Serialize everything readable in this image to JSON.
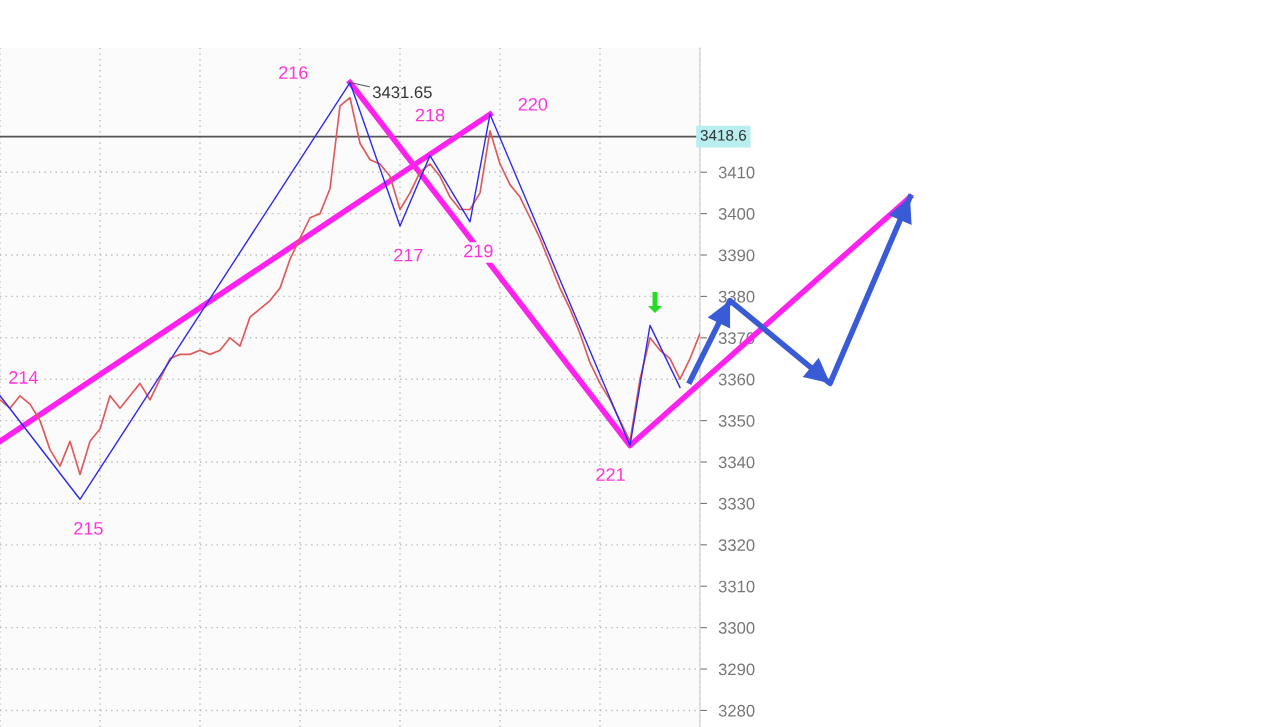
{
  "chart_data": {
    "type": "line",
    "categories": [
      null,
      null,
      null,
      null,
      null,
      null,
      null,
      null,
      null,
      null,
      null,
      null,
      null,
      null,
      null,
      null,
      null,
      null,
      null,
      null,
      null,
      null,
      null,
      null,
      null,
      null,
      null,
      null,
      null,
      null,
      null,
      null,
      null,
      null,
      null,
      null,
      null,
      null,
      null,
      null,
      null,
      null,
      null,
      null,
      null,
      null,
      null,
      null,
      null,
      null,
      null,
      null,
      null,
      null,
      null,
      null,
      null,
      null,
      null,
      null,
      null,
      null,
      null,
      null,
      null,
      null,
      null,
      null,
      null,
      null,
      null,
      null,
      null,
      null,
      null,
      null,
      null,
      null,
      null,
      null,
      null,
      null,
      null,
      null,
      null,
      null,
      null,
      null,
      null,
      null,
      null,
      null
    ],
    "series": [
      {
        "color": "#e05a5a",
        "values": [
          3355,
          3353,
          3356,
          3354,
          3350,
          3343,
          3339,
          3345,
          3337,
          3345,
          3348,
          3356,
          3353,
          3356,
          3359,
          3355,
          3360,
          3365,
          3366,
          3366,
          3367,
          3366,
          3367,
          3370,
          3368,
          3375,
          3377,
          3379,
          3382,
          3389,
          3394,
          3399,
          3400,
          3406,
          3426,
          3428,
          3417,
          3413,
          3412,
          3409,
          3401,
          3405,
          3410,
          3412,
          3409,
          3404,
          3401,
          3401,
          3405,
          3420,
          3412,
          3407,
          3404,
          3399,
          3394,
          3388,
          3382,
          3377,
          3371,
          3364,
          3359,
          3355,
          3350,
          3345,
          3360,
          3370,
          3367,
          3365,
          3360,
          3365,
          3371,
          null,
          null,
          null,
          null,
          null,
          null,
          null,
          null,
          null,
          null,
          null,
          null,
          null,
          null,
          null,
          null,
          null,
          null,
          null,
          null,
          null
        ]
      },
      {
        "color": "#2a2af0",
        "values": [
          3356,
          null,
          null,
          null,
          null,
          null,
          null,
          null,
          3331,
          null,
          null,
          null,
          null,
          null,
          null,
          null,
          null,
          null,
          null,
          null,
          null,
          null,
          null,
          null,
          null,
          null,
          null,
          null,
          null,
          null,
          null,
          null,
          null,
          null,
          null,
          3431.65,
          null,
          null,
          null,
          null,
          3397,
          null,
          null,
          3414,
          null,
          null,
          null,
          3398,
          null,
          3424,
          null,
          null,
          null,
          null,
          null,
          null,
          null,
          null,
          null,
          null,
          null,
          null,
          null,
          3344,
          null,
          3373,
          null,
          null,
          3358,
          null,
          null,
          null,
          null,
          null,
          null,
          null,
          null,
          null,
          null,
          null,
          null,
          null,
          null,
          null,
          null,
          null,
          null,
          null,
          null,
          null,
          null,
          null
        ]
      },
      {
        "color": "#ff22ee",
        "values": [
          3345,
          null,
          null,
          null,
          null,
          null,
          null,
          null,
          null,
          null,
          null,
          null,
          null,
          null,
          null,
          null,
          null,
          null,
          null,
          null,
          null,
          null,
          null,
          null,
          null,
          null,
          null,
          null,
          null,
          null,
          null,
          null,
          null,
          null,
          null,
          null,
          null,
          null,
          null,
          null,
          null,
          null,
          null,
          null,
          null,
          null,
          null,
          null,
          null,
          3424,
          null,
          null,
          null,
          null,
          null,
          null,
          null,
          null,
          null,
          null,
          null,
          null,
          null,
          null,
          null,
          null,
          null,
          null,
          null,
          null,
          null,
          null,
          null,
          null,
          null,
          null,
          null,
          null,
          null,
          null,
          null,
          null,
          null,
          null,
          null,
          null,
          null,
          null,
          null,
          null,
          null,
          null
        ]
      },
      {
        "color": "#ff22ee",
        "values": [
          null,
          null,
          null,
          null,
          null,
          null,
          null,
          null,
          null,
          null,
          null,
          null,
          null,
          null,
          null,
          null,
          null,
          null,
          null,
          null,
          null,
          null,
          null,
          null,
          null,
          null,
          null,
          null,
          null,
          null,
          null,
          null,
          null,
          null,
          null,
          3431.65,
          null,
          null,
          null,
          null,
          null,
          null,
          null,
          null,
          null,
          null,
          null,
          null,
          null,
          null,
          null,
          null,
          null,
          null,
          null,
          null,
          null,
          null,
          null,
          null,
          null,
          null,
          null,
          3344,
          null,
          null,
          null,
          null,
          null,
          null,
          null,
          null,
          null,
          null,
          null,
          null,
          null,
          null,
          null,
          null,
          null,
          null,
          null,
          null,
          null,
          null,
          null,
          null,
          null,
          null,
          null,
          3404
        ]
      },
      {
        "color": "#3a5bd6",
        "values": [
          null,
          null,
          null,
          null,
          null,
          null,
          null,
          null,
          null,
          null,
          null,
          null,
          null,
          null,
          null,
          null,
          null,
          null,
          null,
          null,
          null,
          null,
          null,
          null,
          null,
          null,
          null,
          null,
          null,
          null,
          null,
          null,
          null,
          null,
          null,
          null,
          null,
          null,
          null,
          null,
          null,
          null,
          null,
          null,
          null,
          null,
          null,
          null,
          null,
          null,
          null,
          null,
          null,
          null,
          null,
          null,
          null,
          null,
          null,
          null,
          null,
          null,
          null,
          null,
          null,
          null,
          null,
          null,
          null,
          3359.5,
          null,
          null,
          null,
          3379,
          null,
          null,
          null,
          null,
          null,
          null,
          null,
          null,
          null,
          3359,
          null,
          null,
          null,
          null,
          null,
          null,
          null,
          3404
        ]
      }
    ],
    "annotations": [
      "214",
      "215",
      "216",
      "217",
      "218",
      "219",
      "220",
      "221",
      "3431.65"
    ],
    "ref_lines": [
      {
        "axis": "y",
        "value": 3418.6,
        "label": "3418.6",
        "color": "#555555"
      }
    ],
    "ylim": [
      3276,
      3440
    ],
    "yticks": [
      3280,
      3290,
      3300,
      3310,
      3320,
      3330,
      3340,
      3350,
      3360,
      3370,
      3380,
      3390,
      3400,
      3410
    ],
    "grid": true,
    "tick_labels": "y"
  }
}
